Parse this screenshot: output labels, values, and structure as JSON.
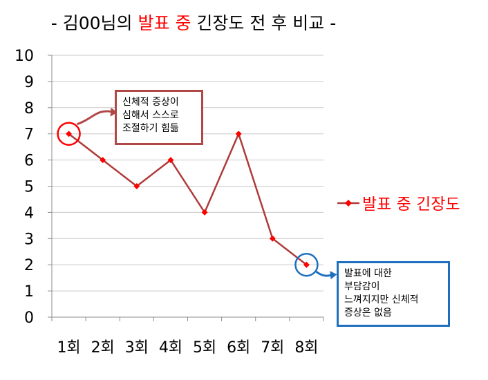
{
  "title": {
    "prefix": "- 김00님의 ",
    "accent": "발표 중",
    "suffix": " 긴장도 전 후 비교 -",
    "accent_color": "#ff0000"
  },
  "chart_data": {
    "type": "line",
    "categories": [
      "1회",
      "2회",
      "3회",
      "4회",
      "5회",
      "6회",
      "7회",
      "8회"
    ],
    "series": [
      {
        "name": "발표 중 긴장도",
        "values": [
          7,
          6,
          5,
          6,
          4,
          7,
          3,
          2
        ],
        "color": "#b03a3a",
        "marker_color": "#ff0000"
      }
    ],
    "ylim": [
      0,
      10
    ],
    "yticks": [
      "0",
      "1",
      "2",
      "3",
      "4",
      "5",
      "6",
      "7",
      "8",
      "9",
      "10"
    ],
    "grid": true,
    "legend": "right",
    "annotations": [
      {
        "lines": [
          "신체적 증상이",
          "심해서 스스로",
          "조절하기 힘듦"
        ],
        "category_index": 0,
        "circle_color": "#ff0000",
        "border_color": "#b04848"
      },
      {
        "lines": [
          "발표에 대한",
          "부담감이",
          "느껴지지만 신체적",
          "증상은 없음"
        ],
        "category_index": 7,
        "circle_color": "#1f6fbf",
        "border_color": "#1f6fbf"
      }
    ]
  }
}
